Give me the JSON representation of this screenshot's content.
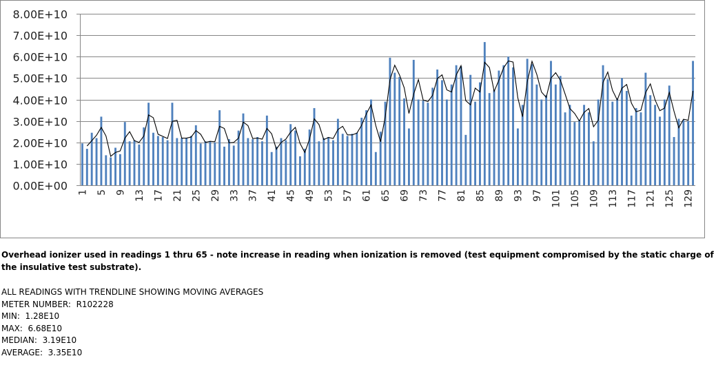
{
  "chart_data": {
    "type": "bar",
    "x": [
      1,
      2,
      3,
      4,
      5,
      6,
      7,
      8,
      9,
      10,
      11,
      12,
      13,
      14,
      15,
      16,
      17,
      18,
      19,
      20,
      21,
      22,
      23,
      24,
      25,
      26,
      27,
      28,
      29,
      30,
      31,
      32,
      33,
      34,
      35,
      36,
      37,
      38,
      39,
      40,
      41,
      42,
      43,
      44,
      45,
      46,
      47,
      48,
      49,
      50,
      51,
      52,
      53,
      54,
      55,
      56,
      57,
      58,
      59,
      60,
      61,
      62,
      63,
      64,
      65,
      66,
      67,
      68,
      69,
      70,
      71,
      72,
      73,
      74,
      75,
      76,
      77,
      78,
      79,
      80,
      81,
      82,
      83,
      84,
      85,
      86,
      87,
      88,
      89,
      90,
      91,
      92,
      93,
      94,
      95,
      96,
      97,
      98,
      99,
      100,
      101,
      102,
      103,
      104,
      105,
      106,
      107,
      108,
      109,
      110,
      111,
      112,
      113,
      114,
      115,
      116,
      117,
      118,
      119,
      120,
      121,
      122,
      123,
      124,
      125,
      126,
      127,
      128,
      129,
      130
    ],
    "x_tick_labels": [
      "1",
      "5",
      "9",
      "13",
      "17",
      "21",
      "25",
      "29",
      "33",
      "37",
      "41",
      "45",
      "49",
      "53",
      "57",
      "61",
      "65",
      "69",
      "73",
      "77",
      "81",
      "85",
      "89",
      "93",
      "97",
      "101",
      "105",
      "109",
      "113",
      "117",
      "121",
      "125",
      "129"
    ],
    "y_tick_labels": [
      "8.00E+10",
      "7.00E+10",
      "6.00E+10",
      "5.00E+10",
      "4.00E+10",
      "3.00E+10",
      "2.00E+10",
      "1.00E+10",
      "0.00E+00"
    ],
    "ylim": [
      0,
      80000000000
    ],
    "ytick_step": 10000000000,
    "values": [
      19500000000.0,
      17000000000.0,
      24500000000.0,
      22000000000.0,
      32000000000.0,
      14000000000.0,
      13000000000.0,
      17500000000.0,
      14500000000.0,
      29500000000.0,
      20500000000.0,
      21000000000.0,
      19000000000.0,
      27000000000.0,
      38500000000.0,
      24500000000.0,
      23000000000.0,
      22500000000.0,
      21000000000.0,
      38500000000.0,
      22000000000.0,
      22000000000.0,
      22000000000.0,
      23000000000.0,
      28000000000.0,
      19500000000.0,
      20500000000.0,
      20500000000.0,
      20000000000.0,
      35000000000.0,
      18000000000.0,
      21500000000.0,
      18500000000.0,
      25500000000.0,
      33500000000.0,
      22000000000.0,
      21500000000.0,
      22500000000.0,
      20500000000.0,
      32500000000.0,
      15500000000.0,
      18000000000.0,
      22000000000.0,
      21000000000.0,
      28500000000.0,
      25500000000.0,
      13500000000.0,
      17000000000.0,
      26000000000.0,
      36000000000.0,
      20500000000.0,
      22000000000.0,
      22500000000.0,
      21000000000.0,
      31000000000.0,
      24000000000.0,
      23000000000.0,
      24000000000.0,
      24500000000.0,
      31500000000.0,
      35000000000.0,
      40000000000.0,
      15500000000.0,
      25000000000.0,
      39000000000.0,
      59500000000.0,
      52500000000.0,
      50500000000.0,
      40500000000.0,
      26500000000.0,
      58500000000.0,
      40000000000.0,
      39500000000.0,
      38500000000.0,
      45500000000.0,
      54000000000.0,
      49000000000.0,
      40000000000.0,
      47000000000.0,
      56000000000.0,
      55500000000.0,
      23500000000.0,
      51500000000.0,
      39000000000.0,
      48000000000.0,
      66800000000.0,
      43000000000.0,
      44500000000.0,
      53500000000.0,
      56000000000.0,
      60000000000.0,
      55000000000.0,
      26500000000.0,
      37500000000.0,
      59000000000.0,
      56500000000.0,
      47000000000.0,
      40000000000.0,
      42000000000.0,
      58000000000.0,
      47000000000.0,
      51000000000.0,
      34000000000.0,
      37500000000.0,
      29500000000.0,
      30500000000.0,
      37500000000.0,
      34000000000.0,
      20500000000.0,
      40000000000.0,
      56000000000.0,
      49500000000.0,
      39000000000.0,
      40500000000.0,
      50000000000.0,
      44000000000.0,
      32500000000.0,
      36000000000.0,
      34000000000.0,
      52500000000.0,
      42000000000.0,
      37500000000.0,
      32000000000.0,
      40000000000.0,
      46500000000.0,
      22500000000.0,
      31000000000.0,
      30500000000.0,
      30000000000.0,
      58000000000.0
    ],
    "trendline": {
      "type": "moving_average",
      "period": 2,
      "values": [
        null,
        18300000000.0,
        20800000000.0,
        23300000000.0,
        27000000000.0,
        23000000000.0,
        13500000000.0,
        15300000000.0,
        16000000000.0,
        22000000000.0,
        25000000000.0,
        20800000000.0,
        20000000000.0,
        23000000000.0,
        32800000000.0,
        31500000000.0,
        23800000000.0,
        22800000000.0,
        21800000000.0,
        29800000000.0,
        30300000000.0,
        22000000000.0,
        22000000000.0,
        22500000000.0,
        25500000000.0,
        23800000000.0,
        20000000000.0,
        20500000000.0,
        20300000000.0,
        27500000000.0,
        26500000000.0,
        19800000000.0,
        20000000000.0,
        22000000000.0,
        29500000000.0,
        27800000000.0,
        21800000000.0,
        22000000000.0,
        21500000000.0,
        26500000000.0,
        24000000000.0,
        16800000000.0,
        20000000000.0,
        21500000000.0,
        24800000000.0,
        27000000000.0,
        19500000000.0,
        15300000000.0,
        21500000000.0,
        31000000000.0,
        28300000000.0,
        21300000000.0,
        22300000000.0,
        21800000000.0,
        26000000000.0,
        27500000000.0,
        23500000000.0,
        23500000000.0,
        24300000000.0,
        28000000000.0,
        33300000000.0,
        37500000000.0,
        27800000000.0,
        20300000000.0,
        32000000000.0,
        49300000000.0,
        56000000000.0,
        51500000000.0,
        45500000000.0,
        33500000000.0,
        42500000000.0,
        49300000000.0,
        39800000000.0,
        39000000000.0,
        42000000000.0,
        49800000000.0,
        51500000000.0,
        44500000000.0,
        43500000000.0,
        51500000000.0,
        55800000000.0,
        39500000000.0,
        37500000000.0,
        45300000000.0,
        43500000000.0,
        57400000000.0,
        54900000000.0,
        43800000000.0,
        49000000000.0,
        54800000000.0,
        58000000000.0,
        57500000000.0,
        40800000000.0,
        32000000000.0,
        48300000000.0,
        57800000000.0,
        51800000000.0,
        43500000000.0,
        41000000000.0,
        50000000000.0,
        52500000000.0,
        49000000000.0,
        42500000000.0,
        35800000000.0,
        33500000000.0,
        30000000000.0,
        34000000000.0,
        35800000000.0,
        27300000000.0,
        30300000000.0,
        48000000000.0,
        52800000000.0,
        44300000000.0,
        39800000000.0,
        45300000000.0,
        47000000000.0,
        38300000000.0,
        34300000000.0,
        35000000000.0,
        43300000000.0,
        47300000000.0,
        39800000000.0,
        34800000000.0,
        36000000000.0,
        43300000000.0,
        34500000000.0,
        26800000000.0,
        30800000000.0,
        30300000000.0,
        44000000000.0
      ]
    },
    "colors": {
      "bar": "#4f81bd",
      "trendline": "#000000",
      "gridline": "#868686",
      "axis": "#868686",
      "border": "#868686"
    },
    "grid": true,
    "legend": "none",
    "title": "",
    "xlabel": "",
    "ylabel": ""
  },
  "notes": {
    "ionizer_note": "Overhead ionizer used in readings 1 thru 65 - note increase in reading when ionization is removed (test equipment compromised by the static charge of the insulative test substrate).",
    "stats": [
      "ALL READINGS WITH TRENDLINE SHOWING MOVING AVERAGES",
      "METER NUMBER:  R102228",
      "MIN:  1.28E10",
      "MAX:  6.68E10",
      "MEDIAN:  3.19E10",
      "AVERAGE:  3.35E10"
    ]
  }
}
